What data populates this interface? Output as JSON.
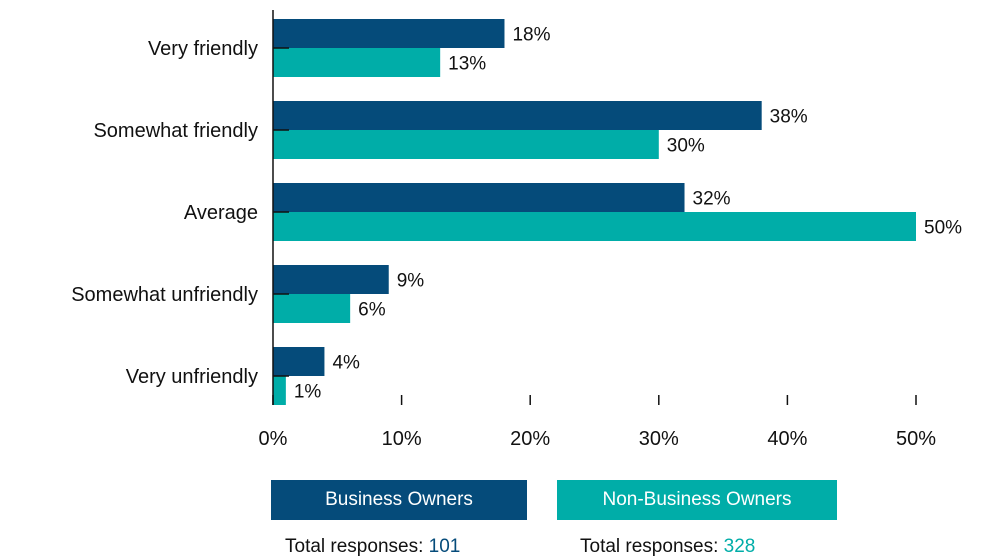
{
  "colors": {
    "business_owners": "#054B7A",
    "non_business_owners": "#00ADA8",
    "axis": "#111111",
    "text": "#111111"
  },
  "legend": {
    "business": {
      "label": "Business Owners",
      "responses_label": "Total responses: ",
      "responses_value": "101"
    },
    "non_business": {
      "label": "Non-Business Owners",
      "responses_label": "Total responses: ",
      "responses_value": "328"
    }
  },
  "chart_data": {
    "type": "bar",
    "orientation": "horizontal",
    "categories": [
      "Very friendly",
      "Somewhat friendly",
      "Average",
      "Somewhat unfriendly",
      "Very unfriendly"
    ],
    "series": [
      {
        "name": "Business Owners",
        "values": [
          18,
          38,
          32,
          9,
          4
        ],
        "labels": [
          "18%",
          "38%",
          "32%",
          "9%",
          "4%"
        ]
      },
      {
        "name": "Non-Business Owners",
        "values": [
          13,
          30,
          50,
          6,
          1
        ],
        "labels": [
          "13%",
          "30%",
          "50%",
          "6%",
          "1%"
        ]
      }
    ],
    "xlim": [
      0,
      50
    ],
    "xticks": [
      0,
      10,
      20,
      30,
      40,
      50
    ],
    "xtick_labels": [
      "0%",
      "10%",
      "20%",
      "30%",
      "40%",
      "50%"
    ],
    "grid": false,
    "legend_position": "bottom"
  }
}
